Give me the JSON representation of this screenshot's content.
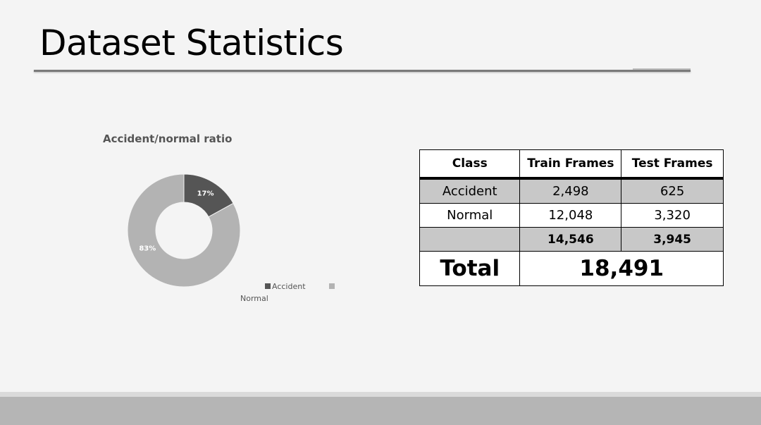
{
  "slide": {
    "title": "Dataset Statistics"
  },
  "colors": {
    "accident": "#555555",
    "normal": "#b3b3b3",
    "table_shade": "#c8c8c8",
    "footer": "#b5b5b5"
  },
  "chart_data": {
    "type": "pie",
    "subtype": "donut",
    "title": "Accident/normal ratio",
    "categories": [
      "Accident",
      "Normal"
    ],
    "values": [
      17,
      83
    ],
    "data_labels": [
      "17%",
      "83%"
    ],
    "legend": {
      "placement": "bottom-right",
      "entries": [
        "Accident",
        "Normal"
      ]
    }
  },
  "table": {
    "headers": [
      "Class",
      "Train Frames",
      "Test Frames"
    ],
    "rows": [
      {
        "class": "Accident",
        "train": "2,498",
        "test": "625"
      },
      {
        "class": "Normal",
        "train": "12,048",
        "test": "3,320"
      }
    ],
    "subtotal": {
      "class": "",
      "train": "14,546",
      "test": "3,945"
    },
    "total": {
      "label": "Total",
      "value": "18,491"
    }
  }
}
